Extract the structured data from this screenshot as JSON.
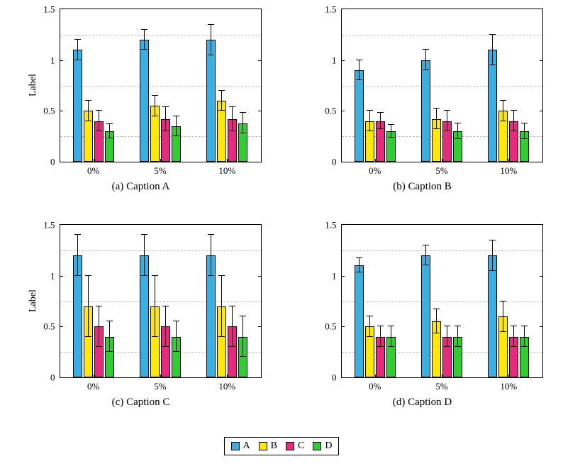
{
  "chart_data": [
    {
      "type": "bar",
      "caption": "(a) Caption A",
      "ylabel": "Label",
      "categories": [
        "0%",
        "5%",
        "10%"
      ],
      "ylim": [
        0,
        1.5
      ],
      "ytick_values": [
        0,
        0.5,
        1,
        1.5
      ],
      "yticks": [
        "0",
        "0.5",
        "1",
        "1.5"
      ],
      "grid_dashed_at": [
        0.25,
        0.75,
        1.25
      ],
      "series": [
        {
          "name": "A",
          "values": [
            1.1,
            1.2,
            1.2
          ],
          "errors": [
            0.1,
            0.1,
            0.15
          ]
        },
        {
          "name": "B",
          "values": [
            0.5,
            0.55,
            0.6
          ],
          "errors": [
            0.1,
            0.1,
            0.1
          ]
        },
        {
          "name": "C",
          "values": [
            0.4,
            0.42,
            0.42
          ],
          "errors": [
            0.1,
            0.12,
            0.12
          ]
        },
        {
          "name": "D",
          "values": [
            0.3,
            0.35,
            0.38
          ],
          "errors": [
            0.07,
            0.1,
            0.1
          ]
        }
      ]
    },
    {
      "type": "bar",
      "caption": "(b) Caption B",
      "ylabel": "",
      "categories": [
        "0%",
        "5%",
        "10%"
      ],
      "ylim": [
        0,
        1.5
      ],
      "ytick_values": [
        0,
        0.5,
        1,
        1.5
      ],
      "yticks": [
        "0",
        "0.5",
        "1",
        "1.5"
      ],
      "grid_dashed_at": [
        0.25,
        0.75,
        1.25
      ],
      "series": [
        {
          "name": "A",
          "values": [
            0.9,
            1.0,
            1.1
          ],
          "errors": [
            0.1,
            0.1,
            0.15
          ]
        },
        {
          "name": "B",
          "values": [
            0.4,
            0.42,
            0.5
          ],
          "errors": [
            0.1,
            0.1,
            0.1
          ]
        },
        {
          "name": "C",
          "values": [
            0.4,
            0.4,
            0.4
          ],
          "errors": [
            0.08,
            0.1,
            0.1
          ]
        },
        {
          "name": "D",
          "values": [
            0.3,
            0.3,
            0.3
          ],
          "errors": [
            0.06,
            0.08,
            0.08
          ]
        }
      ]
    },
    {
      "type": "bar",
      "caption": "(c) Caption C",
      "ylabel": "Label",
      "categories": [
        "0%",
        "5%",
        "10%"
      ],
      "ylim": [
        0,
        1.5
      ],
      "ytick_values": [
        0,
        0.5,
        1,
        1.5
      ],
      "yticks": [
        "0",
        "0.5",
        "1",
        "1.5"
      ],
      "grid_dashed_at": [
        0.25,
        0.75,
        1.25
      ],
      "series": [
        {
          "name": "A",
          "values": [
            1.2,
            1.2,
            1.2
          ],
          "errors": [
            0.2,
            0.2,
            0.2
          ]
        },
        {
          "name": "B",
          "values": [
            0.7,
            0.7,
            0.7
          ],
          "errors": [
            0.3,
            0.3,
            0.3
          ]
        },
        {
          "name": "C",
          "values": [
            0.5,
            0.5,
            0.5
          ],
          "errors": [
            0.2,
            0.2,
            0.2
          ]
        },
        {
          "name": "D",
          "values": [
            0.4,
            0.4,
            0.4
          ],
          "errors": [
            0.15,
            0.15,
            0.2
          ]
        }
      ]
    },
    {
      "type": "bar",
      "caption": "(d) Caption D",
      "ylabel": "",
      "categories": [
        "0%",
        "5%",
        "10%"
      ],
      "ylim": [
        0,
        1.5
      ],
      "ytick_values": [
        0,
        0.5,
        1,
        1.5
      ],
      "yticks": [
        "0",
        "0.5",
        "1",
        "1.5"
      ],
      "grid_dashed_at": [
        0.25,
        0.75,
        1.25
      ],
      "series": [
        {
          "name": "A",
          "values": [
            1.1,
            1.2,
            1.2
          ],
          "errors": [
            0.07,
            0.1,
            0.15
          ]
        },
        {
          "name": "B",
          "values": [
            0.5,
            0.55,
            0.6
          ],
          "errors": [
            0.1,
            0.12,
            0.15
          ]
        },
        {
          "name": "C",
          "values": [
            0.4,
            0.4,
            0.4
          ],
          "errors": [
            0.1,
            0.1,
            0.1
          ]
        },
        {
          "name": "D",
          "values": [
            0.4,
            0.4,
            0.4
          ],
          "errors": [
            0.1,
            0.1,
            0.1
          ]
        }
      ]
    }
  ],
  "legend": {
    "entries": [
      {
        "label": "A",
        "color": "#3BB0E0"
      },
      {
        "label": "B",
        "color": "#FFE80A"
      },
      {
        "label": "C",
        "color": "#E52B7C"
      },
      {
        "label": "D",
        "color": "#33CC33"
      }
    ]
  }
}
